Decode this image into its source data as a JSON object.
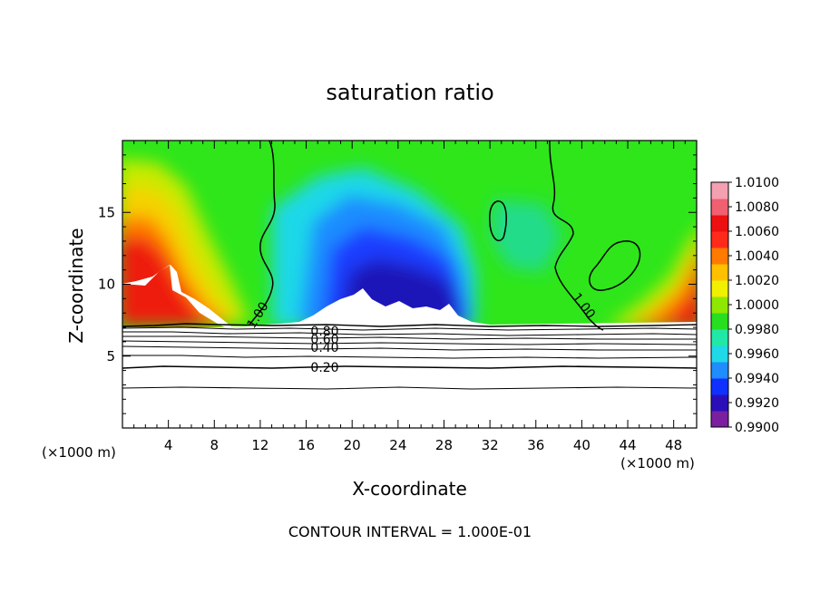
{
  "chart_data": {
    "type": "heatmap",
    "title": "saturation ratio",
    "xlabel": "X-coordinate",
    "ylabel": "Z-coordinate",
    "x_unit": "(×1000 m)",
    "xlim": [
      0,
      50
    ],
    "ylim": [
      0,
      20
    ],
    "x_ticks": [
      4,
      8,
      12,
      16,
      20,
      24,
      28,
      32,
      36,
      40,
      44,
      48
    ],
    "y_ticks": [
      5,
      10,
      15
    ],
    "colorbar": {
      "range": [
        0.99,
        1.01
      ],
      "tick_labels": [
        "1.0100",
        "1.0080",
        "1.0060",
        "1.0040",
        "1.0020",
        "1.0000",
        "0.9980",
        "0.9960",
        "0.9940",
        "0.9920",
        "0.9900"
      ],
      "colors": [
        "#7a1fa0",
        "#2a0fb8",
        "#1030ff",
        "#1f8cff",
        "#1fd8e8",
        "#21e8a6",
        "#28de20",
        "#8ee800",
        "#f0f000",
        "#ffc000",
        "#ff7a00",
        "#ff2a1a",
        "#ec1010",
        "#f06070",
        "#f4a0b0"
      ]
    },
    "contour_labels": [
      "1.00",
      "1.00",
      "0.80",
      "0.60",
      "0.40",
      "0.20"
    ],
    "contour_interval_text": "CONTOUR INTERVAL = 1.000E-01",
    "contour_levels": [
      0.2,
      0.3,
      0.4,
      0.5,
      0.6,
      0.7,
      0.8,
      0.9,
      1.0
    ],
    "cloud_base_z": 7.1
  }
}
